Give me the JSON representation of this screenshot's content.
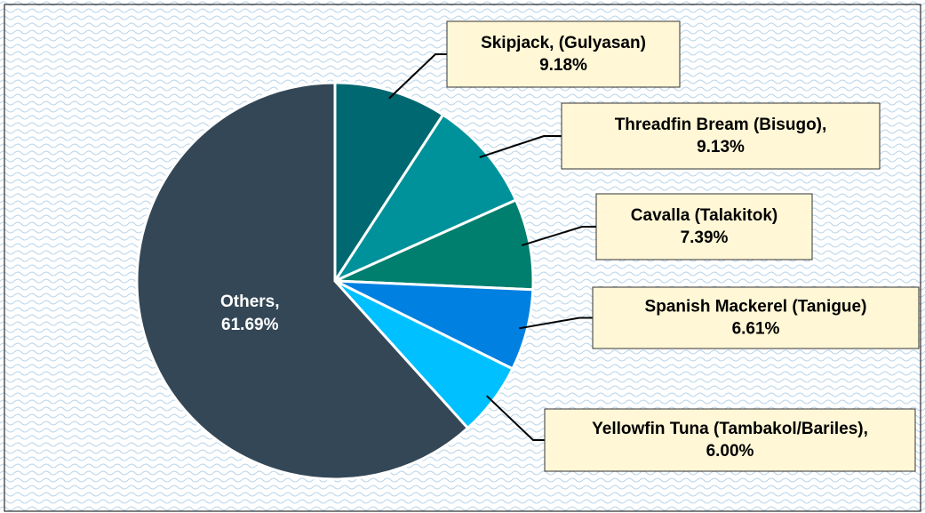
{
  "chart_data": {
    "type": "pie",
    "categories": [
      "Skipjack, (Gulyasan)",
      "Threadfin Bream (Bisugo),",
      "Cavalla (Talakitok)",
      "Spanish Mackerel (Tanigue)",
      "Yellowfin Tuna (Tambakol/Bariles),",
      "Others,"
    ],
    "values": [
      9.18,
      9.13,
      7.39,
      6.61,
      6.0,
      61.69
    ],
    "value_labels": [
      "9.18%",
      "9.13%",
      "7.39%",
      "6.61%",
      "6.00%",
      "61.69%"
    ],
    "colors": [
      "#006870",
      "#00929b",
      "#007e6e",
      "#0080e0",
      "#00c0ff",
      "#344756"
    ]
  }
}
